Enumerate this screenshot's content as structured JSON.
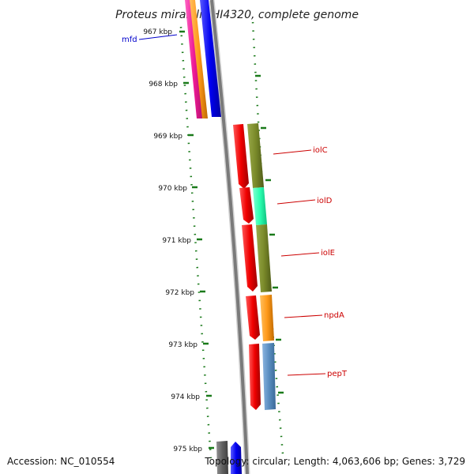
{
  "title": "Proteus mirabilis HI4320, complete genome",
  "footer": {
    "accession": "Accession: NC_010554",
    "stats": "Topology: circular; Length: 4,063,606 bp; Genes: 3,729"
  },
  "colors": {
    "backbone": "#808080",
    "tick": "#1a7a1a",
    "label_red": "#cc0000",
    "label_blue": "#0000cc"
  },
  "axis": {
    "unit": "kbp",
    "ticks": [
      "967 kbp",
      "968 kbp",
      "969 kbp",
      "970 kbp",
      "971 kbp",
      "972 kbp",
      "973 kbp",
      "974 kbp",
      "975 kbp"
    ]
  },
  "genes": [
    {
      "name": "mfd",
      "color": "#0000cc"
    },
    {
      "name": "iolC",
      "color": "#cc0000"
    },
    {
      "name": "iolD",
      "color": "#cc0000"
    },
    {
      "name": "iolE",
      "color": "#cc0000"
    },
    {
      "name": "npdA",
      "color": "#cc0000"
    },
    {
      "name": "pepT",
      "color": "#cc0000"
    }
  ]
}
